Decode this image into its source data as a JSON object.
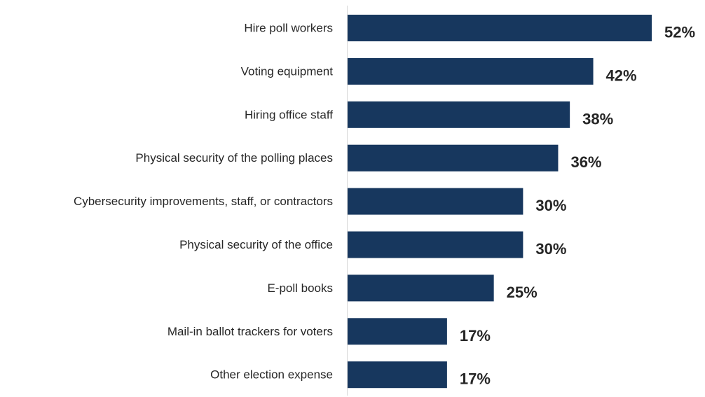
{
  "chart_data": {
    "type": "bar",
    "orientation": "horizontal",
    "title": "",
    "xlabel": "",
    "ylabel": "",
    "categories": [
      "Hire poll workers",
      "Voting equipment",
      "Hiring office staff",
      "Physical security of the polling places",
      "Cybersecurity improvements, staff, or contractors",
      "Physical security of the office",
      "E-poll books",
      "Mail-in ballot trackers for voters",
      "Other election expense"
    ],
    "values": [
      52,
      42,
      38,
      36,
      30,
      30,
      25,
      17,
      17
    ],
    "value_labels": [
      "52%",
      "42%",
      "38%",
      "36%",
      "30%",
      "30%",
      "25%",
      "17%",
      "17%"
    ],
    "unit": "%",
    "xlim": [
      0,
      52
    ],
    "grid": false,
    "legend": "none",
    "bar_color": "#17375e"
  }
}
